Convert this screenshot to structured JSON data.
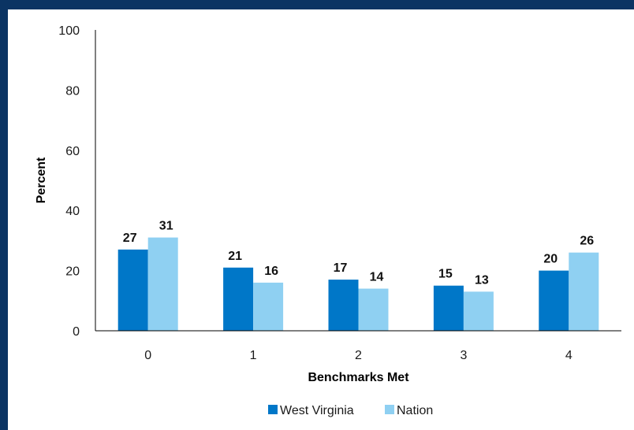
{
  "chart_data": {
    "type": "bar",
    "categories": [
      "0",
      "1",
      "2",
      "3",
      "4"
    ],
    "series": [
      {
        "name": "West Virginia",
        "values": [
          27,
          21,
          17,
          15,
          20
        ],
        "color": "#0077c8"
      },
      {
        "name": "Nation",
        "values": [
          31,
          16,
          14,
          13,
          26
        ],
        "color": "#8fd0f2"
      }
    ],
    "xlabel": "Benchmarks Met",
    "ylabel": "Percent",
    "ylim": [
      0,
      100
    ],
    "yticks": [
      0,
      20,
      40,
      60,
      80,
      100
    ],
    "legend_position": "bottom",
    "grid": false
  },
  "colors": {
    "frame_border": "#0b3463",
    "axis": "#000000"
  }
}
